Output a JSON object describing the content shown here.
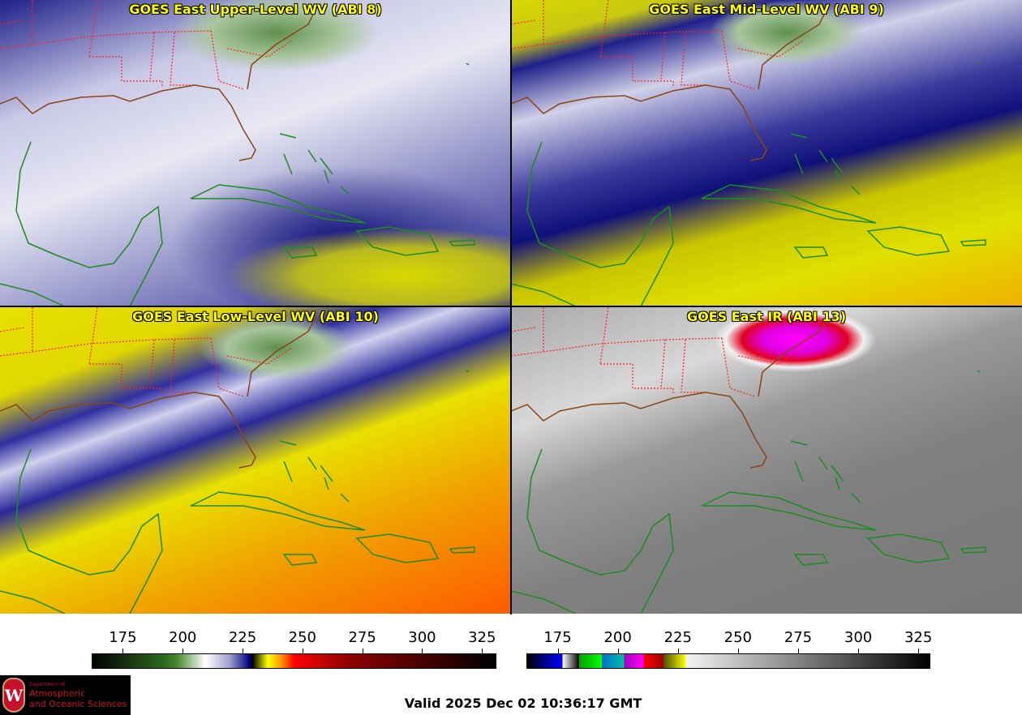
{
  "panels": [
    {
      "title": "GOES East Upper-Level WV (ABI 8)"
    },
    {
      "title": "GOES East Mid-Level WV (ABI 9)"
    },
    {
      "title": "GOES East Low-Level WV (ABI 10)"
    },
    {
      "title": "GOES East IR (ABI 13)"
    }
  ],
  "colorbars": [
    {
      "name": "water-vapor",
      "ticks": [
        "175",
        "200",
        "225",
        "250",
        "275",
        "300",
        "325"
      ],
      "range": [
        162,
        331
      ]
    },
    {
      "name": "infrared",
      "ticks": [
        "175",
        "200",
        "225",
        "250",
        "275",
        "300",
        "325"
      ],
      "range": [
        162,
        330
      ]
    }
  ],
  "colors": {
    "title": "#ffff00",
    "coast_us": "#8b4513",
    "coast": "#1e8c1e",
    "borders": "#ff2020"
  },
  "logo": {
    "line1": "Department of",
    "line2": "Atmospheric",
    "line3": "and Oceanic Sciences",
    "seal": "W"
  },
  "footer": {
    "valid": "Valid 2025 Dec 02 10:36:17 GMT"
  }
}
